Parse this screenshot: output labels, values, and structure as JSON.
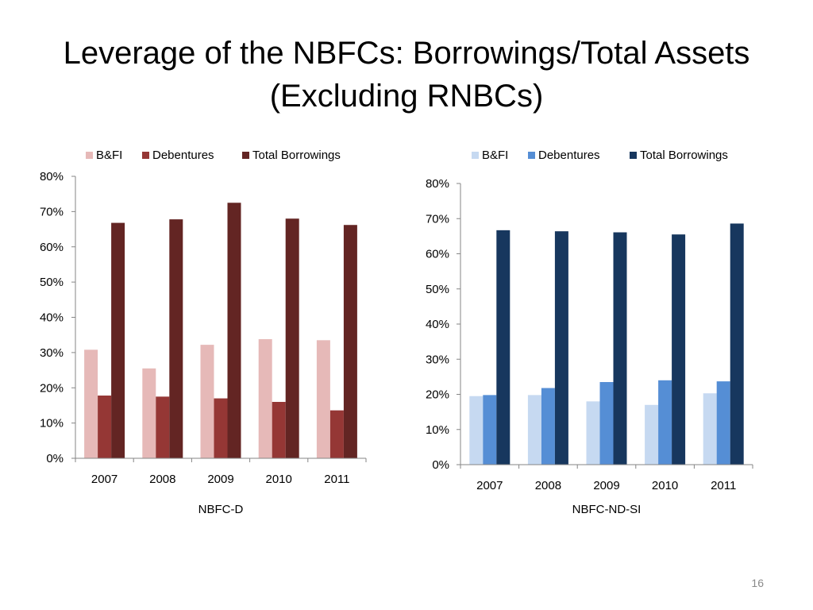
{
  "title": {
    "line1": "Leverage of the NBFCs: Borrowings/Total Assets",
    "line2": "(Excluding RNBCs)"
  },
  "page_number": "16",
  "colors": {
    "left": {
      "B&FI": "#e6b9b8",
      "Debentures": "#953735",
      "Total Borrowings": "#632523"
    },
    "right": {
      "B&FI": "#c6d9f1",
      "Debentures": "#558ed5",
      "Total Borrowings": "#17375e"
    },
    "axis": "#868686"
  },
  "chart_data": [
    {
      "type": "bar",
      "xlabel": "NBFC-D",
      "ylabel": "",
      "categories": [
        "2007",
        "2008",
        "2009",
        "2010",
        "2011"
      ],
      "series": [
        {
          "name": "B&FI",
          "values": [
            30.8,
            25.5,
            32.2,
            33.8,
            33.5
          ]
        },
        {
          "name": "Debentures",
          "values": [
            17.8,
            17.5,
            17.0,
            16.0,
            13.6
          ]
        },
        {
          "name": "Total Borrowings",
          "values": [
            66.8,
            67.8,
            72.5,
            68.0,
            66.2
          ]
        }
      ],
      "ylim": [
        0,
        80
      ],
      "yticks": [
        "0%",
        "10%",
        "20%",
        "30%",
        "40%",
        "50%",
        "60%",
        "70%",
        "80%"
      ],
      "legend": "top",
      "grid": false
    },
    {
      "type": "bar",
      "xlabel": "NBFC-ND-SI",
      "ylabel": "",
      "categories": [
        "2007",
        "2008",
        "2009",
        "2010",
        "2011"
      ],
      "series": [
        {
          "name": "B&FI",
          "values": [
            19.5,
            19.8,
            18.0,
            17.0,
            20.3
          ]
        },
        {
          "name": "Debentures",
          "values": [
            19.8,
            21.8,
            23.5,
            24.0,
            23.7
          ]
        },
        {
          "name": "Total Borrowings",
          "values": [
            66.7,
            66.4,
            66.1,
            65.5,
            68.6
          ]
        }
      ],
      "ylim": [
        0,
        80
      ],
      "yticks": [
        "0%",
        "10%",
        "20%",
        "30%",
        "40%",
        "50%",
        "60%",
        "70%",
        "80%"
      ],
      "legend": "top",
      "grid": false
    }
  ]
}
